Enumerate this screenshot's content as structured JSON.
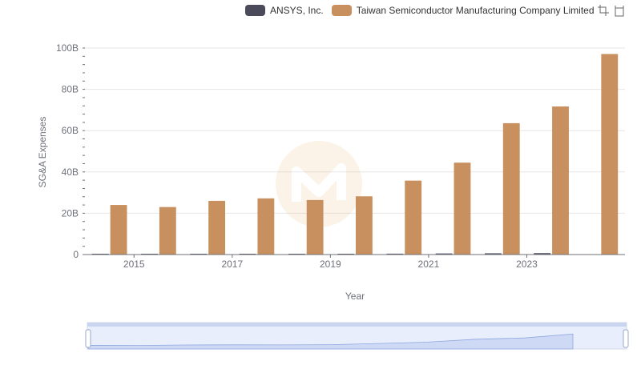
{
  "legend": {
    "items": [
      {
        "label": "ANSYS, Inc.",
        "color": "#4a4a5a"
      },
      {
        "label": "Taiwan Semiconductor Manufacturing Company Limited",
        "color": "#c8905e"
      }
    ]
  },
  "toolbox": {
    "icons": [
      "zoom-icon",
      "restore-zoom-icon"
    ]
  },
  "watermark": {
    "icon": "brand-logo-watermark"
  },
  "colors": {
    "accent_zoom_fill": "#d3e0fb",
    "accent_zoom_border": "#a8b8e8",
    "grid": "#e6e6e6"
  },
  "chart_data": {
    "type": "bar",
    "xlabel": "Year",
    "ylabel": "SG&A Expenses",
    "categories": [
      "2014",
      "2015",
      "2016",
      "2017",
      "2018",
      "2019",
      "2020",
      "2021",
      "2022",
      "2023",
      "2024"
    ],
    "x_tick_labels": [
      "2015",
      "2017",
      "2019",
      "2021",
      "2023"
    ],
    "y_tick_labels": [
      "0",
      "20B",
      "40B",
      "60B",
      "80B",
      "100B"
    ],
    "ylim": [
      0,
      100000000000
    ],
    "grid": true,
    "legend_position": "top",
    "series": [
      {
        "name": "ANSYS, Inc.",
        "color": "#4a4a5a",
        "values": [
          200000000,
          220000000,
          240000000,
          280000000,
          330000000,
          380000000,
          420000000,
          520000000,
          600000000,
          680000000,
          0
        ]
      },
      {
        "name": "Taiwan Semiconductor Manufacturing Company Limited",
        "color": "#c8905e",
        "values": [
          24000000000,
          23000000000,
          26000000000,
          27200000000,
          26400000000,
          28200000000,
          35800000000,
          44500000000,
          63600000000,
          71700000000,
          97100000000
        ]
      }
    ],
    "zoom_slider": {
      "start_percent": 0,
      "end_percent": 100
    }
  }
}
